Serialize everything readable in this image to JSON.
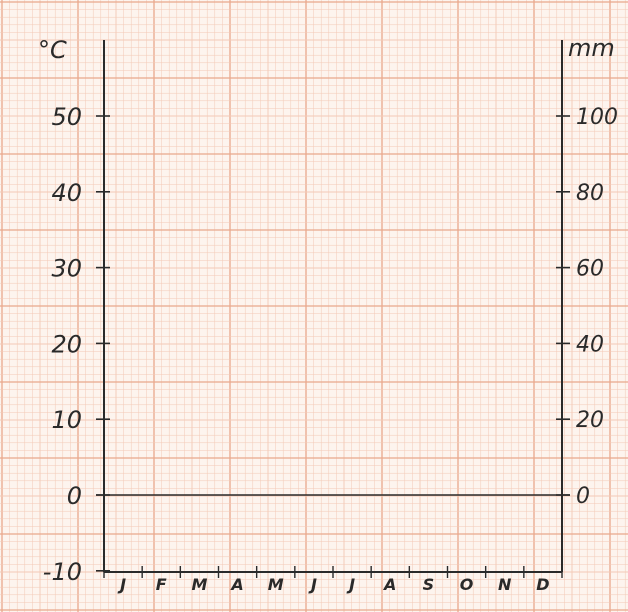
{
  "chart_data": {
    "type": "line",
    "title": "",
    "categories": [
      "J",
      "F",
      "M",
      "A",
      "M",
      "J",
      "J",
      "A",
      "S",
      "O",
      "N",
      "D"
    ],
    "left_axis": {
      "label": "°C",
      "ticks": [
        "-10",
        "0",
        "10",
        "20",
        "30",
        "40",
        "50"
      ],
      "tick_values": [
        -10,
        0,
        10,
        20,
        30,
        40,
        50
      ],
      "ylim": [
        -10,
        60
      ]
    },
    "right_axis": {
      "label": "mm",
      "ticks": [
        "0",
        "20",
        "40",
        "60",
        "80",
        "100"
      ],
      "tick_values": [
        0,
        20,
        40,
        60,
        80,
        100
      ],
      "ylim": [
        0,
        120
      ]
    },
    "series": [],
    "grid": true,
    "colors": {
      "paper": "#fdf4ee",
      "grid_minor": "#f3c9b5",
      "grid_major": "#e9a88c",
      "ink": "#2a2a2a"
    }
  }
}
